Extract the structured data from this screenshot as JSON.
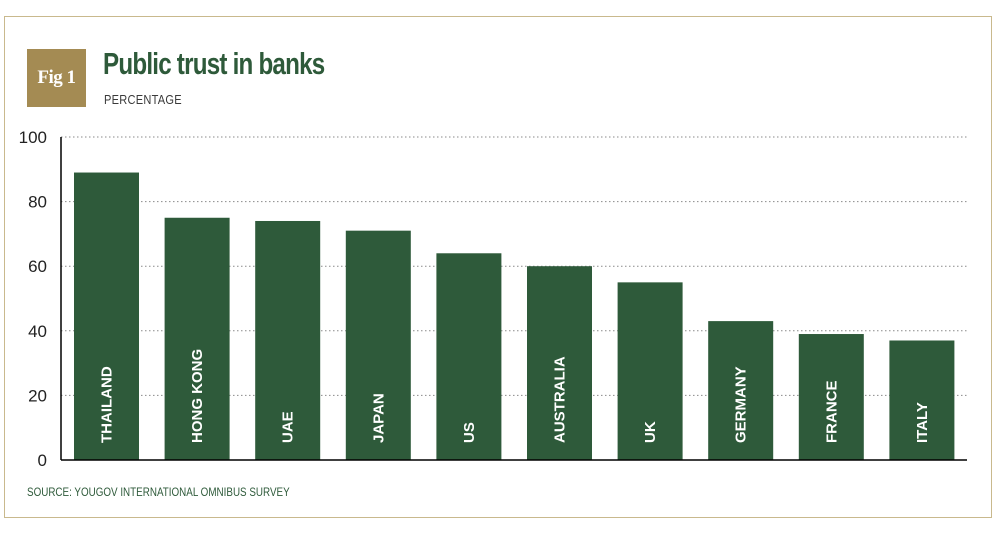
{
  "figure": {
    "badge": "Fig 1",
    "title": "Public trust in banks",
    "subtitle": "PERCENTAGE",
    "source": "SOURCE: YOUGOV INTERNATIONAL OMNIBUS SURVEY"
  },
  "colors": {
    "bar": "#2e5a3a",
    "badge": "#a48b53",
    "frame": "#c9b98d",
    "title": "#2e5a3a",
    "grid": "#8a8a8a"
  },
  "chart_data": {
    "type": "bar",
    "categories": [
      "THAILAND",
      "HONG KONG",
      "UAE",
      "JAPAN",
      "US",
      "AUSTRALIA",
      "UK",
      "GERMANY",
      "FRANCE",
      "ITALY"
    ],
    "values": [
      89,
      75,
      74,
      71,
      64,
      60,
      55,
      43,
      39,
      37
    ],
    "ylim": [
      0,
      100
    ],
    "yticks": [
      "0",
      "20",
      "40",
      "60",
      "80",
      "100"
    ],
    "grid": true,
    "grid_style": "dotted",
    "category_labels": "vertical-inside-bars"
  }
}
